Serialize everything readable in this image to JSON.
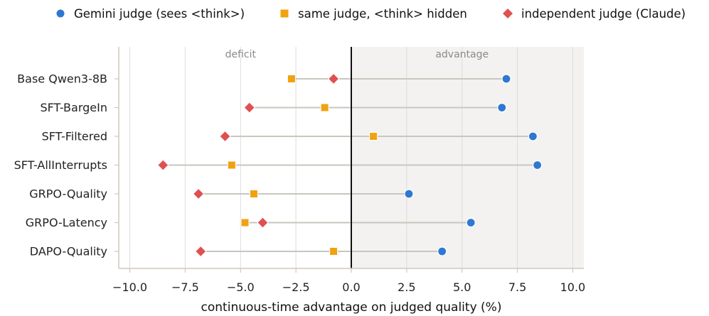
{
  "chart_data": {
    "type": "dumbbell",
    "xlabel": "continuous-time advantage on judged quality (%)",
    "ylabel": "",
    "xlim": [
      -10.5,
      10.5
    ],
    "xticks": [
      -10.0,
      -7.5,
      -5.0,
      -2.5,
      0.0,
      2.5,
      5.0,
      7.5,
      10.0
    ],
    "xtick_labels": [
      "−10.0",
      "−7.5",
      "−5.0",
      "−2.5",
      "0.0",
      "2.5",
      "5.0",
      "7.5",
      "10.0"
    ],
    "region_labels": {
      "left": "deficit",
      "right": "advantage"
    },
    "categories": [
      "Base Qwen3-8B",
      "SFT-BargeIn",
      "SFT-Filtered",
      "SFT-AllInterrupts",
      "GRPO-Quality",
      "GRPO-Latency",
      "DAPO-Quality"
    ],
    "series": [
      {
        "name": "Gemini judge (sees <think>)",
        "marker": "circle",
        "color": "#2e78d2",
        "values": [
          7.0,
          6.8,
          8.2,
          8.4,
          2.6,
          5.4,
          4.1
        ]
      },
      {
        "name": "same judge, <think> hidden",
        "marker": "square",
        "color": "#f0a20f",
        "values": [
          -2.7,
          -1.2,
          1.0,
          -5.4,
          -4.4,
          -4.8,
          -0.8
        ]
      },
      {
        "name": "independent judge (Claude)",
        "marker": "diamond",
        "color": "#e05050",
        "values": [
          -0.8,
          -4.6,
          -5.7,
          -8.5,
          -6.9,
          -4.0,
          -6.8
        ]
      }
    ],
    "grid": true,
    "legend_position": "top"
  }
}
